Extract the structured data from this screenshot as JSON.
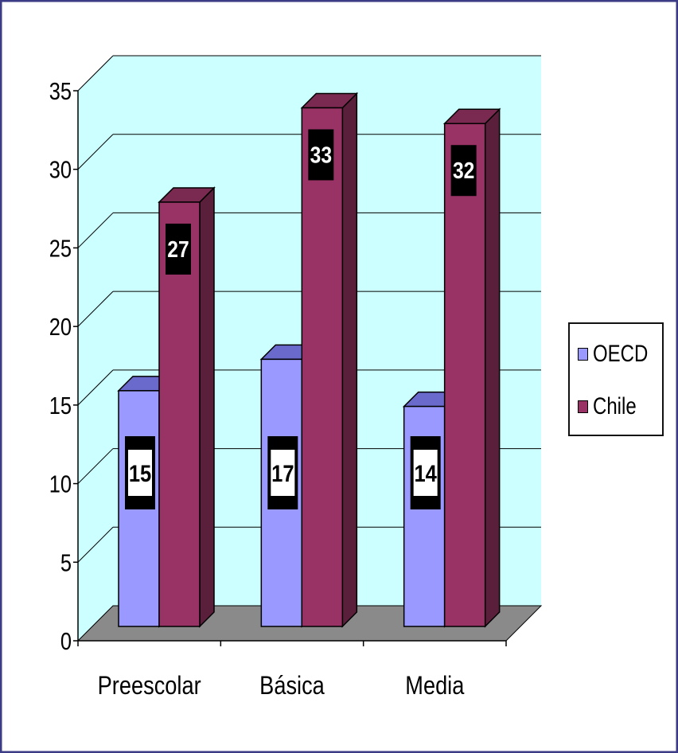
{
  "colors": {
    "frame": "#3b3b86",
    "wall": "#ccffff",
    "floor": "#8a8a8a",
    "gridline": "#000000",
    "label_box": "#000000",
    "label_text_white": "#ffffff"
  },
  "chart_data": {
    "type": "bar",
    "variant": "3d-clustered",
    "title": "",
    "xlabel": "",
    "ylabel": "",
    "categories": [
      "Preescolar",
      "Básica",
      "Media"
    ],
    "ylim": [
      0,
      35
    ],
    "yticks": [
      0,
      5,
      10,
      15,
      20,
      25,
      30,
      35
    ],
    "grid": true,
    "legend_position": "right",
    "series": [
      {
        "name": "OECD",
        "values": [
          15,
          17,
          14
        ],
        "color": "#9999ff",
        "top_color": "#6a6acc",
        "side_color": "#5a5aa8",
        "label_style": "black-box-white-inner"
      },
      {
        "name": "Chile",
        "values": [
          27,
          33,
          32
        ],
        "color": "#993366",
        "top_color": "#7a2a50",
        "side_color": "#5a1f3a",
        "label_style": "black-box-white-text"
      }
    ],
    "data_labels": [
      "15",
      "17",
      "14",
      "27",
      "33",
      "32"
    ]
  }
}
